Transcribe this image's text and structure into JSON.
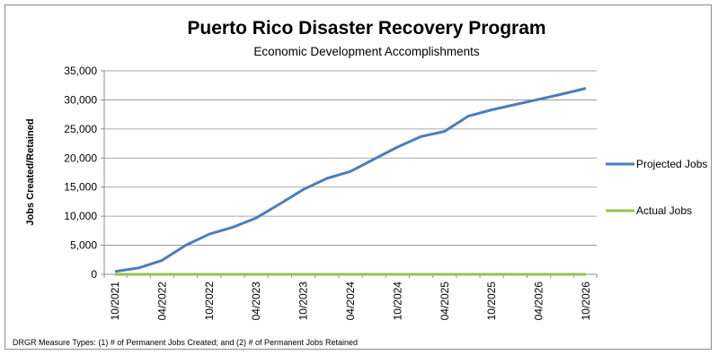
{
  "chart_data": {
    "type": "line",
    "title": "Puerto Rico Disaster Recovery Program",
    "subtitle": "Economic Development Accomplishments",
    "ylabel": "Jobs Created/Retained",
    "xlabel": "",
    "ylim": [
      0,
      35000
    ],
    "yticks": [
      0,
      5000,
      10000,
      15000,
      20000,
      25000,
      30000,
      35000
    ],
    "ytick_labels": [
      "0",
      "5,000",
      "10,000",
      "15,000",
      "20,000",
      "25,000",
      "30,000",
      "35,000"
    ],
    "grid": true,
    "legend_position": "right",
    "xtick_labels": [
      "10/2021",
      "04/2022",
      "10/2022",
      "04/2023",
      "10/2023",
      "04/2024",
      "10/2024",
      "04/2025",
      "10/2025",
      "04/2026",
      "10/2026"
    ],
    "x": [
      "10/2021",
      "01/2022",
      "04/2022",
      "07/2022",
      "10/2022",
      "01/2023",
      "04/2023",
      "07/2023",
      "10/2023",
      "01/2024",
      "04/2024",
      "07/2024",
      "10/2024",
      "01/2025",
      "04/2025",
      "07/2025",
      "10/2025",
      "01/2026",
      "04/2026",
      "07/2026",
      "10/2026"
    ],
    "series": [
      {
        "name": "Projected Jobs",
        "color": "#4a7ebb",
        "values": [
          500,
          1100,
          2400,
          5000,
          6900,
          8100,
          9700,
          12100,
          14600,
          16500,
          17700,
          19800,
          21900,
          23700,
          24600,
          27200,
          28300,
          29200,
          30100,
          31000,
          32000
        ]
      },
      {
        "name": "Actual Jobs",
        "color": "#98c04c",
        "values": [
          0,
          0,
          0,
          0,
          0,
          0,
          0,
          0,
          0,
          0,
          0,
          0,
          0,
          0,
          0,
          0,
          0,
          0,
          0,
          0,
          0
        ]
      }
    ],
    "footnote": "DRGR Measure Types: (1) # of Permanent Jobs Created; and (2) # of Permanent Jobs Retained"
  }
}
